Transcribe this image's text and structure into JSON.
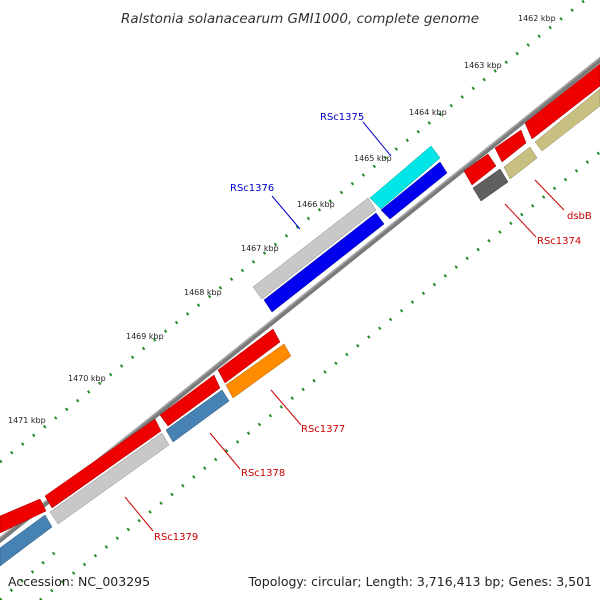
{
  "header": {
    "title": "Ralstonia solanacearum GMI1000, complete genome"
  },
  "footer": {
    "accession": "Accession: NC_003295",
    "summary": "Topology: circular; Length: 3,716,413 bp; Genes: 3,501"
  },
  "colors": {
    "backbone": "#7a7a7a",
    "tick": "#228b22",
    "label_plus": "#0000cc",
    "label_minus": "#cc0000",
    "red_cds": "#ee0000",
    "blue_cds": "#0000ee",
    "cyan_cds": "#00e5e5",
    "gray_cds": "#c8c8c8",
    "steel_cds": "#4682b4",
    "orange_cds": "#ff8c00",
    "khaki_cds": "#c8c080",
    "dark_cds": "#606060"
  },
  "ticks": [
    {
      "label": "1462 kbp"
    },
    {
      "label": "1463 kbp"
    },
    {
      "label": "1464 kbp"
    },
    {
      "label": "1465 kbp"
    },
    {
      "label": "1466 kbp"
    },
    {
      "label": "1467 kbp"
    },
    {
      "label": "1468 kbp"
    },
    {
      "label": "1469 kbp"
    },
    {
      "label": "1470 kbp"
    },
    {
      "label": "1471 kbp"
    }
  ],
  "gene_labels": [
    {
      "name": "RSc1375"
    },
    {
      "name": "RSc1376"
    },
    {
      "name": "dsbB"
    },
    {
      "name": "RSc1374"
    },
    {
      "name": "RSc1377"
    },
    {
      "name": "RSc1378"
    },
    {
      "name": "RSc1379"
    }
  ]
}
